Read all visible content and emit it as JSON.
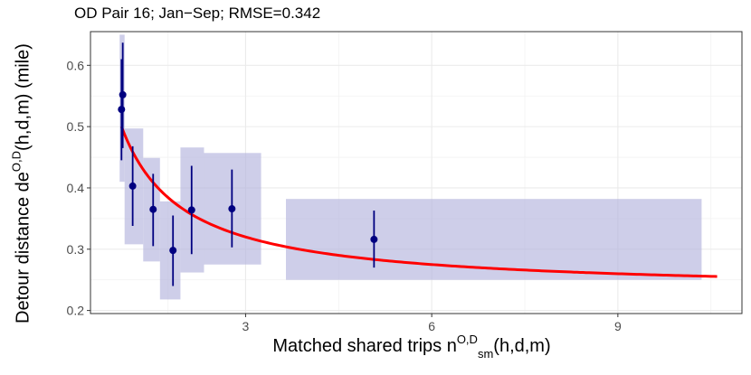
{
  "chart_data": {
    "type": "scatter",
    "title": "OD Pair 16; Jan−Sep; RMSE=0.342",
    "ylabel": {
      "main": "Detour distance de",
      "sup": "O,D",
      "suffix": "(h,d,m) (mile)"
    },
    "xlabel": {
      "main": "Matched shared trips n",
      "sup": "O,D",
      "sub": "sm",
      "suffix": "(h,d,m)"
    },
    "xlim": [
      0.5,
      11.0
    ],
    "ylim": [
      0.195,
      0.655
    ],
    "x_ticks": [
      3,
      6,
      9
    ],
    "y_ticks": [
      0.2,
      0.3,
      0.4,
      0.5,
      0.6
    ],
    "grid": true,
    "colors": {
      "points": "#000080",
      "boxes": "#b3b3dd",
      "fit": "#ff0000",
      "grid": "#ebebeb"
    },
    "points": [
      {
        "x": 1.0,
        "y": 0.528,
        "ylow": 0.445,
        "yhigh": 0.61
      },
      {
        "x": 1.02,
        "y": 0.552,
        "ylow": 0.465,
        "yhigh": 0.637
      },
      {
        "x": 1.18,
        "y": 0.403,
        "ylow": 0.338,
        "yhigh": 0.468
      },
      {
        "x": 1.51,
        "y": 0.365,
        "ylow": 0.305,
        "yhigh": 0.423
      },
      {
        "x": 1.83,
        "y": 0.298,
        "ylow": 0.24,
        "yhigh": 0.355
      },
      {
        "x": 2.13,
        "y": 0.364,
        "ylow": 0.292,
        "yhigh": 0.436
      },
      {
        "x": 2.78,
        "y": 0.366,
        "ylow": 0.303,
        "yhigh": 0.43
      },
      {
        "x": 5.07,
        "y": 0.316,
        "ylow": 0.27,
        "yhigh": 0.363
      }
    ],
    "boxes": [
      {
        "x0": 0.97,
        "x1": 1.05,
        "y0": 0.41,
        "y1": 0.65
      },
      {
        "x0": 1.05,
        "x1": 1.35,
        "y0": 0.308,
        "y1": 0.497
      },
      {
        "x0": 1.35,
        "x1": 1.62,
        "y0": 0.28,
        "y1": 0.449
      },
      {
        "x0": 1.62,
        "x1": 1.95,
        "y0": 0.218,
        "y1": 0.378
      },
      {
        "x0": 1.95,
        "x1": 2.33,
        "y0": 0.262,
        "y1": 0.466
      },
      {
        "x0": 2.33,
        "x1": 3.25,
        "y0": 0.275,
        "y1": 0.457
      },
      {
        "x0": 3.65,
        "x1": 10.35,
        "y0": 0.25,
        "y1": 0.382
      }
    ],
    "fit": {
      "x_start": 1.0,
      "x_end": 10.6,
      "a": 0.23,
      "b": 0.27
    }
  }
}
